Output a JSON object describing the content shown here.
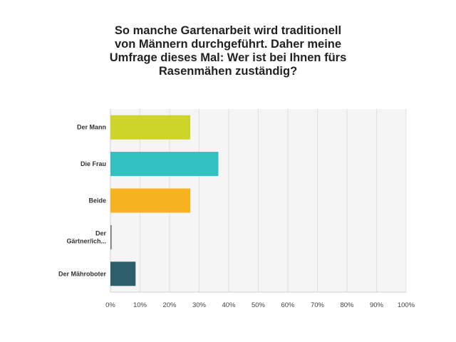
{
  "chart_data": {
    "type": "bar",
    "orientation": "horizontal",
    "title_lines": [
      "So manche Gartenarbeit wird traditionell",
      "von Männern durchgeführt. Daher meine",
      "Umfrage dieses Mal: Wer ist bei Ihnen fürs",
      "Rasenmähen zuständig?"
    ],
    "categories": [
      [
        "Der Mann"
      ],
      [
        "Die Frau"
      ],
      [
        "Beide"
      ],
      [
        "Der",
        "Gärtner/ich..."
      ],
      [
        "Der Mähroboter"
      ]
    ],
    "values": [
      27,
      36.5,
      27,
      0.4,
      8.5
    ],
    "colors": [
      "#cdd42a",
      "#32c0c0",
      "#f7b220",
      "#6f7f77",
      "#2d5e6b"
    ],
    "xlim": [
      0,
      100
    ],
    "xticks": [
      "0%",
      "10%",
      "20%",
      "30%",
      "40%",
      "50%",
      "60%",
      "70%",
      "80%",
      "90%",
      "100%"
    ],
    "grid": true,
    "legend": "none"
  }
}
